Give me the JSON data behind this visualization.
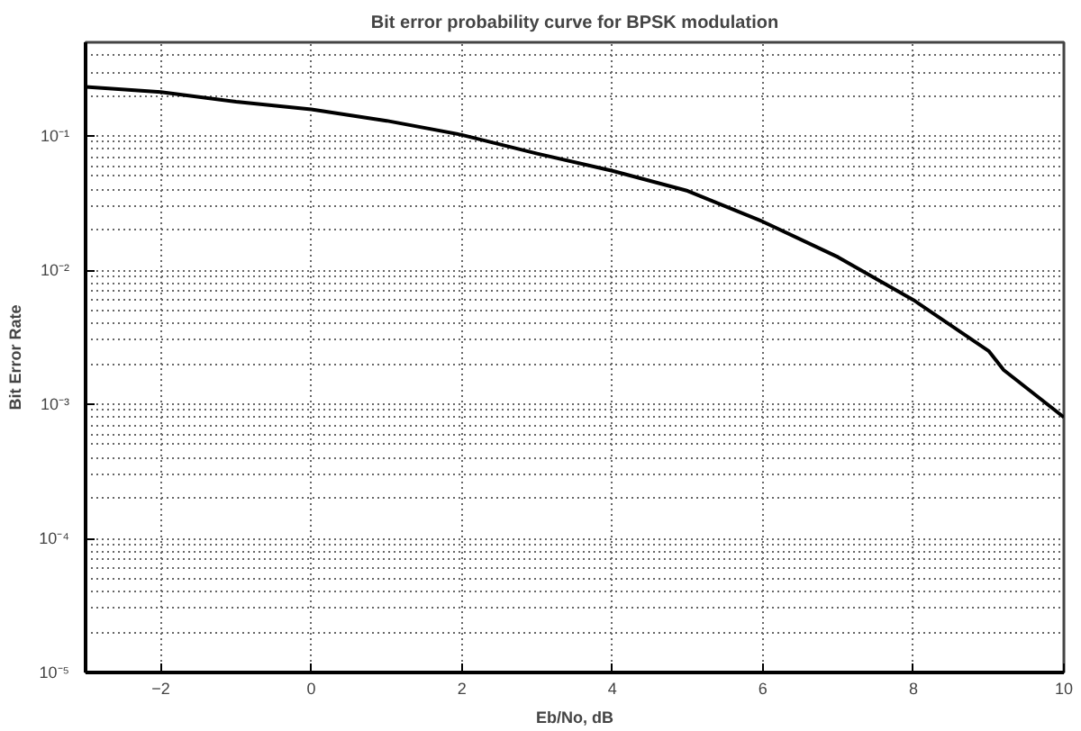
{
  "chart_data": {
    "type": "line",
    "title": "Bit error probability curve for BPSK modulation",
    "xlabel": "Eb/No, dB",
    "ylabel": "Bit Error Rate",
    "x": [
      -3,
      -2,
      -1,
      0,
      1,
      2,
      3,
      4,
      5,
      6,
      7,
      8,
      9,
      9.2,
      10
    ],
    "series": [
      {
        "color": "#000000",
        "values": [
          0.233,
          0.213,
          0.18,
          0.158,
          0.13,
          0.102,
          0.074,
          0.055,
          0.039,
          0.023,
          0.0125,
          0.006,
          0.0025,
          0.0018,
          0.0008
        ]
      }
    ],
    "xlim": [
      -3,
      10
    ],
    "xticks": [
      -2,
      0,
      2,
      4,
      6,
      8,
      10
    ],
    "ylim": [
      1e-05,
      0.5
    ],
    "yticks": [
      {
        "value": 0.1,
        "label": "10⁻¹"
      },
      {
        "value": 0.01,
        "label": "10⁻²"
      },
      {
        "value": 0.001,
        "label": "10⁻³"
      },
      {
        "value": 0.0001,
        "label": "10⁻⁴"
      },
      {
        "value": 1e-05,
        "label": "10⁻⁵"
      }
    ],
    "log": "y",
    "grid": true,
    "line_style": "solid",
    "marker": "none"
  }
}
